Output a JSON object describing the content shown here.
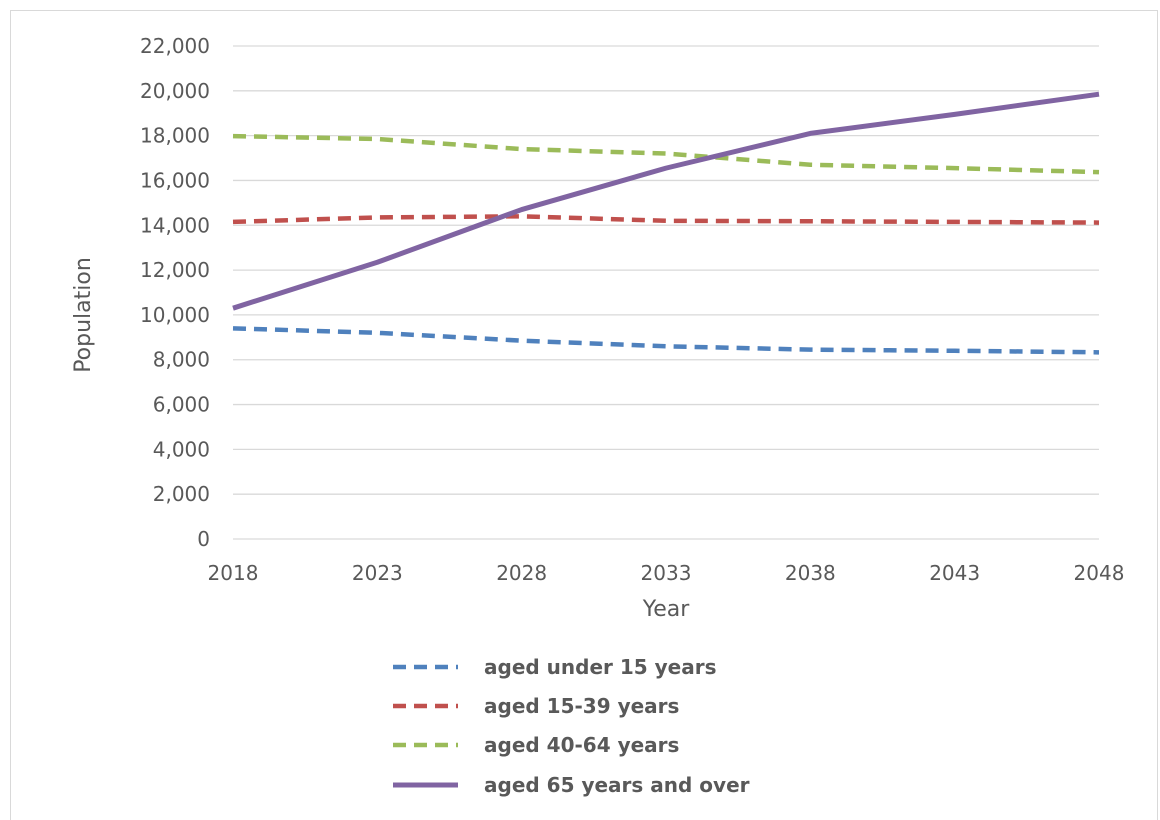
{
  "chart_data": {
    "type": "line",
    "title": "",
    "xlabel": "Year",
    "ylabel": "Population",
    "x": [
      2018,
      2023,
      2028,
      2033,
      2038,
      2043,
      2048
    ],
    "ylim": [
      0,
      22000
    ],
    "yticks": [
      0,
      2000,
      4000,
      6000,
      8000,
      10000,
      12000,
      14000,
      16000,
      18000,
      20000,
      22000
    ],
    "ytick_labels": [
      "0",
      "2,000",
      "4,000",
      "6,000",
      "8,000",
      "10,000",
      "12,000",
      "14,000",
      "16,000",
      "18,000",
      "20,000",
      "22,000"
    ],
    "xtick_labels": [
      "2018",
      "2023",
      "2028",
      "2033",
      "2038",
      "2043",
      "2048"
    ],
    "grid": "horizontal",
    "legend_position": "bottom",
    "series": [
      {
        "name": "aged under 15 years",
        "color": "#4f81bd",
        "dash": true,
        "values": [
          9400,
          9200,
          8850,
          8600,
          8450,
          8400,
          8330
        ]
      },
      {
        "name": "aged 15-39 years",
        "color": "#c0504d",
        "dash": true,
        "values": [
          14150,
          14350,
          14400,
          14200,
          14180,
          14150,
          14120
        ]
      },
      {
        "name": "aged 40-64 years",
        "color": "#9bbb59",
        "dash": true,
        "values": [
          17980,
          17850,
          17400,
          17200,
          16700,
          16550,
          16370
        ]
      },
      {
        "name": "aged 65 years and over",
        "color": "#8064a2",
        "dash": false,
        "values": [
          10300,
          12350,
          14700,
          16550,
          18100,
          18950,
          19850
        ]
      }
    ]
  }
}
